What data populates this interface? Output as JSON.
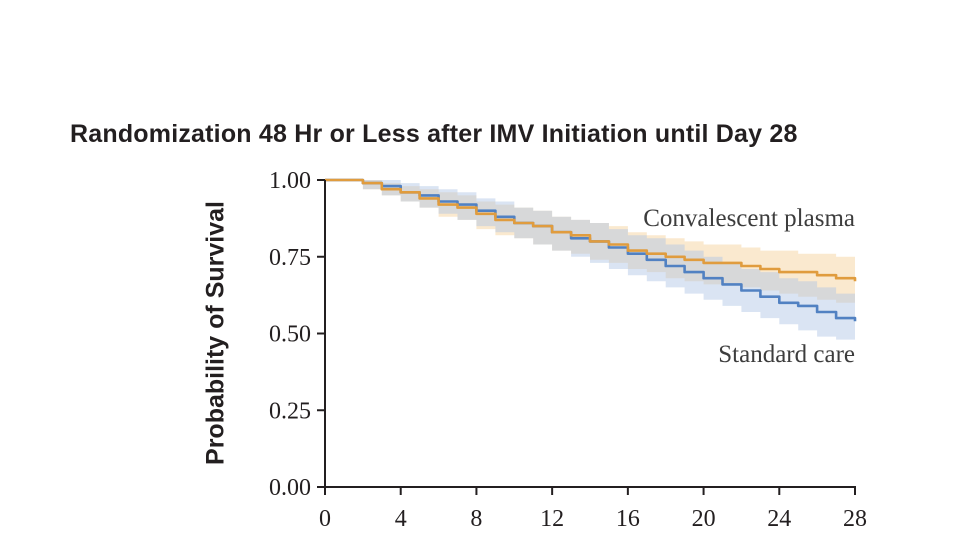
{
  "background_color": "#ffffff",
  "chart_data": {
    "type": "line",
    "subtype": "kaplan-meier-step-with-confidence-bands",
    "title": "Randomization 48 Hr or Less after IMV Initiation until Day 28",
    "xlabel": "",
    "ylabel": "Probability of Survival",
    "xlim": [
      0,
      28
    ],
    "ylim": [
      0,
      1
    ],
    "xticks": [
      0,
      4,
      8,
      12,
      16,
      20,
      24,
      28
    ],
    "yticks": [
      0,
      0.25,
      0.5,
      0.75,
      1.0
    ],
    "ytick_labels": [
      "0.00",
      "0.25",
      "0.50",
      "0.75",
      "1.00"
    ],
    "grid": false,
    "legend_position": "inline-annotations-right",
    "axis_color": "#231f20",
    "series": [
      {
        "name": "Convalescent plasma",
        "color": "#e09c3e",
        "band_color": "#f3cf95",
        "band_opacity": 0.45,
        "x": [
          0,
          2,
          3,
          4,
          5,
          6,
          7,
          8,
          9,
          10,
          11,
          12,
          13,
          14,
          15,
          16,
          17,
          18,
          19,
          20,
          21,
          22,
          23,
          24,
          25,
          26,
          27,
          28
        ],
        "y": [
          1.0,
          0.99,
          0.97,
          0.96,
          0.94,
          0.92,
          0.91,
          0.89,
          0.87,
          0.86,
          0.85,
          0.83,
          0.82,
          0.8,
          0.79,
          0.77,
          0.76,
          0.75,
          0.74,
          0.73,
          0.73,
          0.72,
          0.71,
          0.7,
          0.7,
          0.69,
          0.68,
          0.67
        ],
        "upper": [
          1.0,
          1.0,
          0.99,
          0.98,
          0.97,
          0.96,
          0.95,
          0.93,
          0.92,
          0.91,
          0.9,
          0.88,
          0.87,
          0.86,
          0.85,
          0.83,
          0.82,
          0.81,
          0.8,
          0.79,
          0.79,
          0.78,
          0.77,
          0.77,
          0.76,
          0.76,
          0.75,
          0.74
        ],
        "lower": [
          1.0,
          0.97,
          0.95,
          0.93,
          0.91,
          0.88,
          0.87,
          0.84,
          0.82,
          0.81,
          0.79,
          0.77,
          0.76,
          0.74,
          0.73,
          0.71,
          0.7,
          0.68,
          0.67,
          0.66,
          0.66,
          0.65,
          0.64,
          0.63,
          0.62,
          0.61,
          0.6,
          0.59
        ]
      },
      {
        "name": "Standard care",
        "color": "#5181c2",
        "band_color": "#aec4e5",
        "band_opacity": 0.45,
        "x": [
          0,
          2,
          3,
          4,
          5,
          6,
          7,
          8,
          9,
          10,
          11,
          12,
          13,
          14,
          15,
          16,
          17,
          18,
          19,
          20,
          21,
          22,
          23,
          24,
          25,
          26,
          27,
          28
        ],
        "y": [
          1.0,
          0.99,
          0.98,
          0.96,
          0.95,
          0.93,
          0.92,
          0.9,
          0.88,
          0.86,
          0.85,
          0.83,
          0.81,
          0.8,
          0.78,
          0.76,
          0.74,
          0.72,
          0.7,
          0.68,
          0.66,
          0.64,
          0.62,
          0.6,
          0.59,
          0.57,
          0.55,
          0.54
        ],
        "upper": [
          1.0,
          1.0,
          1.0,
          0.99,
          0.98,
          0.97,
          0.96,
          0.94,
          0.93,
          0.91,
          0.9,
          0.88,
          0.87,
          0.86,
          0.84,
          0.82,
          0.81,
          0.79,
          0.77,
          0.75,
          0.73,
          0.71,
          0.7,
          0.68,
          0.67,
          0.65,
          0.63,
          0.62
        ],
        "lower": [
          1.0,
          0.97,
          0.95,
          0.93,
          0.91,
          0.89,
          0.87,
          0.85,
          0.83,
          0.81,
          0.79,
          0.77,
          0.75,
          0.73,
          0.71,
          0.69,
          0.67,
          0.65,
          0.63,
          0.61,
          0.59,
          0.57,
          0.55,
          0.53,
          0.51,
          0.49,
          0.48,
          0.46
        ]
      }
    ]
  }
}
